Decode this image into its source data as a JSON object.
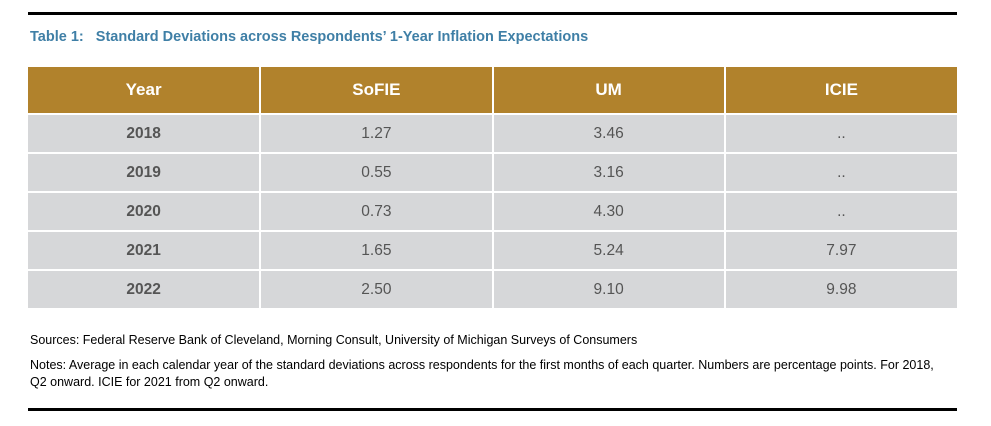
{
  "title": "Table 1:   Standard Deviations across Respondents’ 1-Year Inflation Expectations",
  "table": {
    "headers": [
      "Year",
      "SoFIE",
      "UM",
      "ICIE"
    ],
    "rows": [
      [
        "2018",
        "1.27",
        "3.46",
        ".."
      ],
      [
        "2019",
        "0.55",
        "3.16",
        ".."
      ],
      [
        "2020",
        "0.73",
        "4.30",
        ".."
      ],
      [
        "2021",
        "1.65",
        "5.24",
        "7.97"
      ],
      [
        "2022",
        "2.50",
        "9.10",
        "9.98"
      ]
    ]
  },
  "sources": "Sources: Federal Reserve Bank of Cleveland, Morning Consult, University of Michigan Surveys of Consumers",
  "notes": "Notes: Average in each calendar year of the standard deviations across respondents for the first months of each quarter. Numbers are percentage points. For 2018, Q2 onward. ICIE for 2021 from Q2 onward.",
  "colors": {
    "header_bg": "#b1822c",
    "title_text": "#3f7fa6",
    "cell_bg": "#d6d7d9"
  }
}
